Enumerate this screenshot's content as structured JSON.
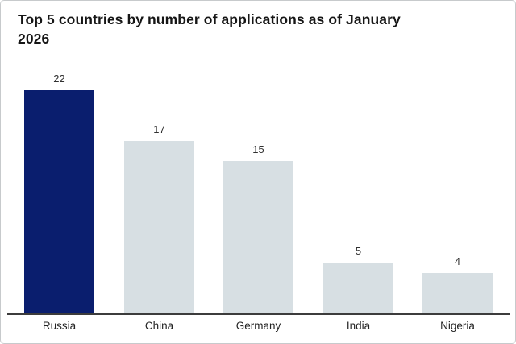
{
  "title": {
    "line1": "Top 5 countries by number of applications as of January",
    "line2": "2026"
  },
  "chart_data": {
    "type": "bar",
    "title": "Top 5 countries by number of applications as of January 2026",
    "categories": [
      "Russia",
      "China",
      "Germany",
      "India",
      "Nigeria"
    ],
    "values": [
      22,
      17,
      15,
      5,
      4
    ],
    "value_labels": [
      "22",
      "17",
      "15",
      "5",
      "4"
    ],
    "highlight_category": "Russia",
    "xlabel": "",
    "ylabel": "",
    "ylim": [
      0,
      22
    ],
    "grid": false,
    "legend": false,
    "colors": {
      "highlight_bar": "#0a1e6e",
      "default_bar": "#d7dfe3",
      "axis_line": "#3c3c3c",
      "title_text": "#161616",
      "label_text": "#303030",
      "background": "#ffffff",
      "card_border": "#c7cacc"
    }
  }
}
